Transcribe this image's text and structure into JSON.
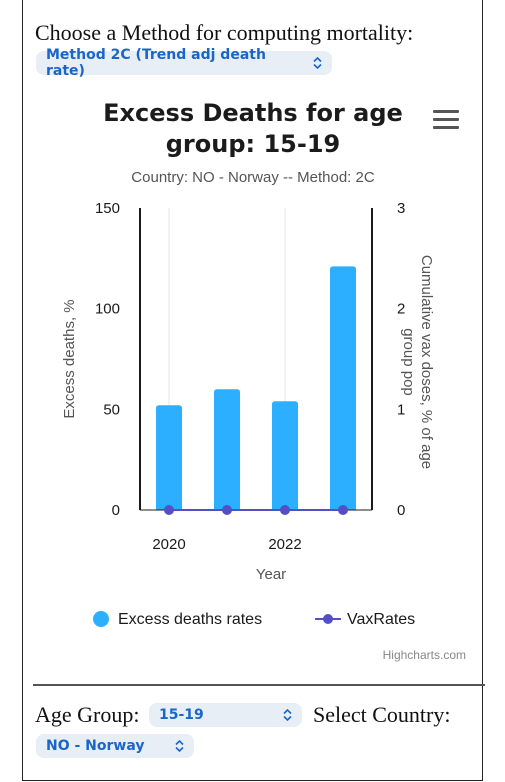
{
  "controls": {
    "method_prompt": "Choose a Method for computing mortality:",
    "method_value": "Method 2C (Trend adj death rate)",
    "age_group_label": "Age Group:",
    "age_group_value": "15-19",
    "country_label": "Select Country:",
    "country_value": "NO - Norway"
  },
  "chart_data": {
    "type": "bar",
    "title": "Excess Deaths for age group: 15-19",
    "subtitle": "Country: NO - Norway -- Method: 2C",
    "xlabel": "Year",
    "ylabel": "Excess deaths, %",
    "y2label": "Cumulative vax doses, % of age group pop",
    "x_ticks": [
      "2020",
      "2022"
    ],
    "x": [
      2020,
      2021,
      2022,
      2023
    ],
    "ylim": [
      0,
      150
    ],
    "y_ticks": [
      "0",
      "50",
      "100",
      "150"
    ],
    "y2lim": [
      0,
      3
    ],
    "y2_ticks": [
      "0",
      "1",
      "2",
      "3"
    ],
    "series": [
      {
        "name": "Excess deaths rates",
        "type": "bar",
        "axis": "left",
        "color": "#2caffe",
        "values": [
          52,
          60,
          54,
          121
        ]
      },
      {
        "name": "VaxRates",
        "type": "line",
        "axis": "right",
        "color": "#544fc5",
        "values": [
          0,
          0,
          0,
          0
        ]
      }
    ],
    "grid": true,
    "legend": "bottom-center",
    "credits": "Highcharts.com"
  }
}
